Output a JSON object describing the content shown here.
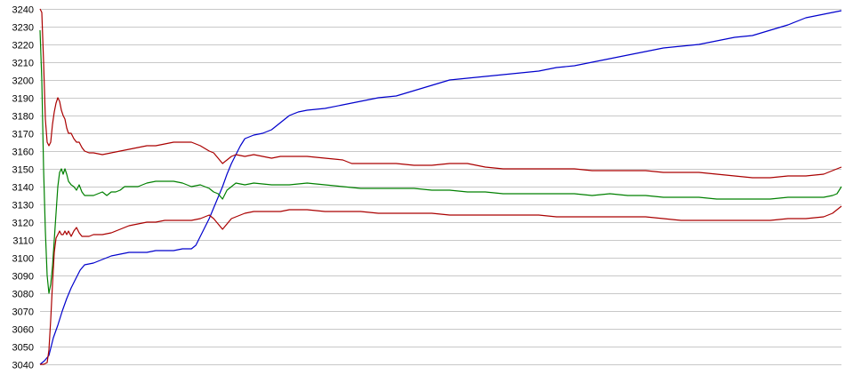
{
  "chart_data": {
    "type": "line",
    "title": "",
    "xlabel": "",
    "ylabel": "",
    "ylim": [
      3040,
      3240
    ],
    "yticks": [
      3040,
      3050,
      3060,
      3070,
      3080,
      3090,
      3100,
      3110,
      3120,
      3130,
      3140,
      3150,
      3160,
      3170,
      3180,
      3190,
      3200,
      3210,
      3220,
      3230,
      3240
    ],
    "xlim": [
      0,
      900
    ],
    "grid": "horizontal",
    "legend": "none",
    "series": [
      {
        "color": "#0000cc",
        "points": [
          [
            0,
            3040
          ],
          [
            5,
            3042
          ],
          [
            10,
            3045
          ],
          [
            15,
            3055
          ],
          [
            20,
            3062
          ],
          [
            25,
            3070
          ],
          [
            30,
            3077
          ],
          [
            35,
            3083
          ],
          [
            40,
            3088
          ],
          [
            45,
            3093
          ],
          [
            50,
            3096
          ],
          [
            60,
            3097
          ],
          [
            70,
            3099
          ],
          [
            80,
            3101
          ],
          [
            90,
            3102
          ],
          [
            100,
            3103
          ],
          [
            110,
            3103
          ],
          [
            120,
            3103
          ],
          [
            130,
            3104
          ],
          [
            140,
            3104
          ],
          [
            150,
            3104
          ],
          [
            160,
            3105
          ],
          [
            170,
            3105
          ],
          [
            175,
            3107
          ],
          [
            180,
            3112
          ],
          [
            185,
            3117
          ],
          [
            190,
            3122
          ],
          [
            195,
            3128
          ],
          [
            200,
            3134
          ],
          [
            205,
            3140
          ],
          [
            210,
            3147
          ],
          [
            215,
            3153
          ],
          [
            220,
            3158
          ],
          [
            225,
            3163
          ],
          [
            230,
            3167
          ],
          [
            240,
            3169
          ],
          [
            250,
            3170
          ],
          [
            260,
            3172
          ],
          [
            270,
            3176
          ],
          [
            280,
            3180
          ],
          [
            290,
            3182
          ],
          [
            300,
            3183
          ],
          [
            320,
            3184
          ],
          [
            340,
            3186
          ],
          [
            360,
            3188
          ],
          [
            380,
            3190
          ],
          [
            400,
            3191
          ],
          [
            420,
            3194
          ],
          [
            440,
            3197
          ],
          [
            460,
            3200
          ],
          [
            480,
            3201
          ],
          [
            500,
            3202
          ],
          [
            520,
            3203
          ],
          [
            540,
            3204
          ],
          [
            560,
            3205
          ],
          [
            580,
            3207
          ],
          [
            600,
            3208
          ],
          [
            620,
            3210
          ],
          [
            640,
            3212
          ],
          [
            660,
            3214
          ],
          [
            680,
            3216
          ],
          [
            700,
            3218
          ],
          [
            720,
            3219
          ],
          [
            740,
            3220
          ],
          [
            760,
            3222
          ],
          [
            780,
            3224
          ],
          [
            800,
            3225
          ],
          [
            820,
            3228
          ],
          [
            840,
            3231
          ],
          [
            860,
            3235
          ],
          [
            880,
            3237
          ],
          [
            900,
            3239
          ]
        ]
      },
      {
        "color": "#008000",
        "points": [
          [
            0,
            3228
          ],
          [
            2,
            3200
          ],
          [
            4,
            3150
          ],
          [
            6,
            3115
          ],
          [
            8,
            3090
          ],
          [
            10,
            3080
          ],
          [
            12,
            3085
          ],
          [
            14,
            3095
          ],
          [
            16,
            3110
          ],
          [
            18,
            3125
          ],
          [
            20,
            3140
          ],
          [
            22,
            3148
          ],
          [
            24,
            3150
          ],
          [
            26,
            3147
          ],
          [
            28,
            3150
          ],
          [
            30,
            3147
          ],
          [
            32,
            3143
          ],
          [
            35,
            3141
          ],
          [
            38,
            3140
          ],
          [
            41,
            3138
          ],
          [
            44,
            3141
          ],
          [
            47,
            3137
          ],
          [
            50,
            3135
          ],
          [
            55,
            3135
          ],
          [
            60,
            3135
          ],
          [
            65,
            3136
          ],
          [
            70,
            3137
          ],
          [
            75,
            3135
          ],
          [
            80,
            3137
          ],
          [
            85,
            3137
          ],
          [
            90,
            3138
          ],
          [
            95,
            3140
          ],
          [
            100,
            3140
          ],
          [
            110,
            3140
          ],
          [
            120,
            3142
          ],
          [
            130,
            3143
          ],
          [
            140,
            3143
          ],
          [
            150,
            3143
          ],
          [
            160,
            3142
          ],
          [
            170,
            3140
          ],
          [
            180,
            3141
          ],
          [
            190,
            3139
          ],
          [
            195,
            3137
          ],
          [
            200,
            3136
          ],
          [
            205,
            3133
          ],
          [
            210,
            3138
          ],
          [
            215,
            3140
          ],
          [
            220,
            3142
          ],
          [
            230,
            3141
          ],
          [
            240,
            3142
          ],
          [
            260,
            3141
          ],
          [
            280,
            3141
          ],
          [
            300,
            3142
          ],
          [
            320,
            3141
          ],
          [
            340,
            3140
          ],
          [
            360,
            3139
          ],
          [
            380,
            3139
          ],
          [
            400,
            3139
          ],
          [
            420,
            3139
          ],
          [
            440,
            3138
          ],
          [
            460,
            3138
          ],
          [
            480,
            3137
          ],
          [
            500,
            3137
          ],
          [
            520,
            3136
          ],
          [
            540,
            3136
          ],
          [
            560,
            3136
          ],
          [
            580,
            3136
          ],
          [
            600,
            3136
          ],
          [
            620,
            3135
          ],
          [
            640,
            3136
          ],
          [
            660,
            3135
          ],
          [
            680,
            3135
          ],
          [
            700,
            3134
          ],
          [
            720,
            3134
          ],
          [
            740,
            3134
          ],
          [
            760,
            3133
          ],
          [
            780,
            3133
          ],
          [
            800,
            3133
          ],
          [
            820,
            3133
          ],
          [
            840,
            3134
          ],
          [
            860,
            3134
          ],
          [
            880,
            3134
          ],
          [
            890,
            3135
          ],
          [
            895,
            3136
          ],
          [
            900,
            3140
          ]
        ]
      },
      {
        "color": "#aa0000",
        "points": [
          [
            0,
            3240
          ],
          [
            2,
            3238
          ],
          [
            4,
            3210
          ],
          [
            6,
            3178
          ],
          [
            8,
            3165
          ],
          [
            10,
            3163
          ],
          [
            12,
            3165
          ],
          [
            14,
            3175
          ],
          [
            16,
            3182
          ],
          [
            18,
            3187
          ],
          [
            20,
            3190
          ],
          [
            22,
            3188
          ],
          [
            24,
            3183
          ],
          [
            26,
            3180
          ],
          [
            28,
            3178
          ],
          [
            30,
            3173
          ],
          [
            32,
            3170
          ],
          [
            35,
            3170
          ],
          [
            38,
            3167
          ],
          [
            41,
            3165
          ],
          [
            44,
            3165
          ],
          [
            47,
            3162
          ],
          [
            50,
            3160
          ],
          [
            55,
            3159
          ],
          [
            60,
            3159
          ],
          [
            70,
            3158
          ],
          [
            80,
            3159
          ],
          [
            90,
            3160
          ],
          [
            100,
            3161
          ],
          [
            110,
            3162
          ],
          [
            120,
            3163
          ],
          [
            130,
            3163
          ],
          [
            140,
            3164
          ],
          [
            150,
            3165
          ],
          [
            160,
            3165
          ],
          [
            170,
            3165
          ],
          [
            180,
            3163
          ],
          [
            190,
            3160
          ],
          [
            195,
            3159
          ],
          [
            200,
            3156
          ],
          [
            205,
            3153
          ],
          [
            210,
            3155
          ],
          [
            215,
            3157
          ],
          [
            220,
            3158
          ],
          [
            230,
            3157
          ],
          [
            240,
            3158
          ],
          [
            250,
            3157
          ],
          [
            260,
            3156
          ],
          [
            270,
            3157
          ],
          [
            280,
            3157
          ],
          [
            300,
            3157
          ],
          [
            320,
            3156
          ],
          [
            340,
            3155
          ],
          [
            350,
            3153
          ],
          [
            360,
            3153
          ],
          [
            380,
            3153
          ],
          [
            400,
            3153
          ],
          [
            420,
            3152
          ],
          [
            440,
            3152
          ],
          [
            460,
            3153
          ],
          [
            480,
            3153
          ],
          [
            500,
            3151
          ],
          [
            520,
            3150
          ],
          [
            540,
            3150
          ],
          [
            560,
            3150
          ],
          [
            580,
            3150
          ],
          [
            600,
            3150
          ],
          [
            620,
            3149
          ],
          [
            640,
            3149
          ],
          [
            660,
            3149
          ],
          [
            680,
            3149
          ],
          [
            700,
            3148
          ],
          [
            720,
            3148
          ],
          [
            740,
            3148
          ],
          [
            760,
            3147
          ],
          [
            780,
            3146
          ],
          [
            800,
            3145
          ],
          [
            820,
            3145
          ],
          [
            840,
            3146
          ],
          [
            860,
            3146
          ],
          [
            880,
            3147
          ],
          [
            890,
            3149
          ],
          [
            900,
            3151
          ]
        ]
      },
      {
        "color": "#aa0000",
        "points": [
          [
            0,
            3040
          ],
          [
            4,
            3040
          ],
          [
            8,
            3041
          ],
          [
            10,
            3048
          ],
          [
            12,
            3065
          ],
          [
            14,
            3085
          ],
          [
            16,
            3103
          ],
          [
            18,
            3111
          ],
          [
            20,
            3113
          ],
          [
            22,
            3115
          ],
          [
            24,
            3113
          ],
          [
            26,
            3113
          ],
          [
            28,
            3115
          ],
          [
            30,
            3113
          ],
          [
            32,
            3115
          ],
          [
            35,
            3112
          ],
          [
            38,
            3115
          ],
          [
            41,
            3117
          ],
          [
            44,
            3114
          ],
          [
            47,
            3112
          ],
          [
            50,
            3112
          ],
          [
            55,
            3112
          ],
          [
            60,
            3113
          ],
          [
            70,
            3113
          ],
          [
            80,
            3114
          ],
          [
            90,
            3116
          ],
          [
            100,
            3118
          ],
          [
            110,
            3119
          ],
          [
            120,
            3120
          ],
          [
            130,
            3120
          ],
          [
            140,
            3121
          ],
          [
            150,
            3121
          ],
          [
            160,
            3121
          ],
          [
            170,
            3121
          ],
          [
            180,
            3122
          ],
          [
            190,
            3124
          ],
          [
            195,
            3122
          ],
          [
            200,
            3119
          ],
          [
            205,
            3116
          ],
          [
            210,
            3119
          ],
          [
            215,
            3122
          ],
          [
            220,
            3123
          ],
          [
            230,
            3125
          ],
          [
            240,
            3126
          ],
          [
            250,
            3126
          ],
          [
            260,
            3126
          ],
          [
            270,
            3126
          ],
          [
            280,
            3127
          ],
          [
            300,
            3127
          ],
          [
            320,
            3126
          ],
          [
            340,
            3126
          ],
          [
            360,
            3126
          ],
          [
            380,
            3125
          ],
          [
            400,
            3125
          ],
          [
            420,
            3125
          ],
          [
            440,
            3125
          ],
          [
            460,
            3124
          ],
          [
            480,
            3124
          ],
          [
            500,
            3124
          ],
          [
            520,
            3124
          ],
          [
            540,
            3124
          ],
          [
            560,
            3124
          ],
          [
            580,
            3123
          ],
          [
            600,
            3123
          ],
          [
            620,
            3123
          ],
          [
            640,
            3123
          ],
          [
            660,
            3123
          ],
          [
            680,
            3123
          ],
          [
            700,
            3122
          ],
          [
            720,
            3121
          ],
          [
            740,
            3121
          ],
          [
            760,
            3121
          ],
          [
            780,
            3121
          ],
          [
            800,
            3121
          ],
          [
            820,
            3121
          ],
          [
            840,
            3122
          ],
          [
            860,
            3122
          ],
          [
            880,
            3123
          ],
          [
            890,
            3125
          ],
          [
            900,
            3129
          ]
        ]
      }
    ]
  }
}
